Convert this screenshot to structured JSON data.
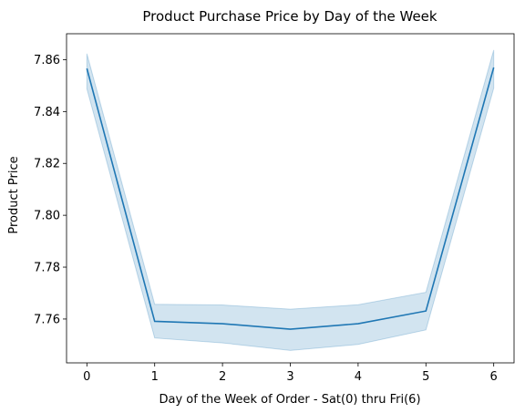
{
  "chart_data": {
    "type": "line",
    "title": "Product Purchase Price by Day of the Week",
    "xlabel": "Day of the Week of Order - Sat(0) thru Fri(6)",
    "ylabel": "Product Price",
    "x": [
      0,
      1,
      2,
      3,
      4,
      5,
      6
    ],
    "series": [
      {
        "values": [
          7.8566,
          7.7591,
          7.7582,
          7.7561,
          7.7582,
          7.7631,
          7.857
        ],
        "ci_lower": [
          7.8488,
          7.7527,
          7.7508,
          7.7479,
          7.7502,
          7.7558,
          7.849
        ],
        "ci_upper": [
          7.8623,
          7.7657,
          7.7654,
          7.7638,
          7.7655,
          7.7703,
          7.8637
        ],
        "color": "#1f77b4",
        "band_color": "#1f77b4"
      }
    ],
    "xlim": [
      -0.3,
      6.3
    ],
    "ylim": [
      7.7431,
      7.87
    ],
    "xticks": [
      0,
      1,
      2,
      3,
      4,
      5,
      6
    ],
    "xtick_labels": [
      "0",
      "1",
      "2",
      "3",
      "4",
      "5",
      "6"
    ],
    "yticks": [
      7.76,
      7.78,
      7.8,
      7.82,
      7.84,
      7.86
    ],
    "ytick_labels": [
      "7.76",
      "7.78",
      "7.80",
      "7.82",
      "7.84",
      "7.86"
    ],
    "grid": false,
    "legend": false
  }
}
